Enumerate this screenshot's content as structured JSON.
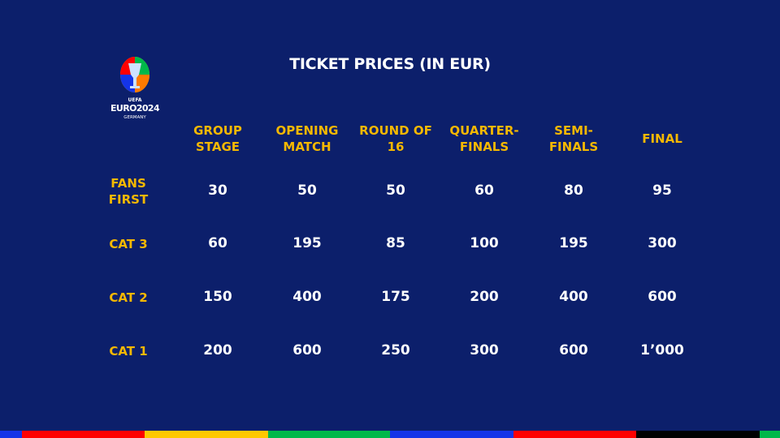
{
  "title": "TICKET PRICES (IN EUR)",
  "logo": {
    "text": "UEFA EURO2024 GERMANY",
    "line1": "UEFA",
    "line2": "EURO2024",
    "line3": "GERMANY"
  },
  "columns": [
    [
      "GROUP",
      "STAGE"
    ],
    [
      "OPENING",
      "MATCH"
    ],
    [
      "ROUND OF",
      "16"
    ],
    [
      "QUARTER-",
      "FINALS"
    ],
    [
      "SEMI-",
      "FINALS"
    ],
    [
      "FINAL",
      ""
    ]
  ],
  "rows": [
    {
      "label": [
        "FANS",
        "FIRST"
      ],
      "values": [
        "30",
        "50",
        "50",
        "60",
        "80",
        "95"
      ]
    },
    {
      "label": [
        "CAT 3",
        ""
      ],
      "values": [
        "60",
        "195",
        "85",
        "100",
        "195",
        "300"
      ]
    },
    {
      "label": [
        "CAT 2",
        ""
      ],
      "values": [
        "150",
        "400",
        "175",
        "200",
        "400",
        "600"
      ]
    },
    {
      "label": [
        "CAT 1",
        ""
      ],
      "values": [
        "200",
        "600",
        "250",
        "300",
        "600",
        "1’000"
      ]
    }
  ],
  "colors": {
    "background": "#0c1f6b",
    "accent": "#f5b800",
    "stripe": [
      "#1434e8",
      "#ff0000",
      "#ffc800",
      "#00b84a",
      "#1434e8",
      "#ff0000",
      "#000000",
      "#00b84a"
    ]
  }
}
